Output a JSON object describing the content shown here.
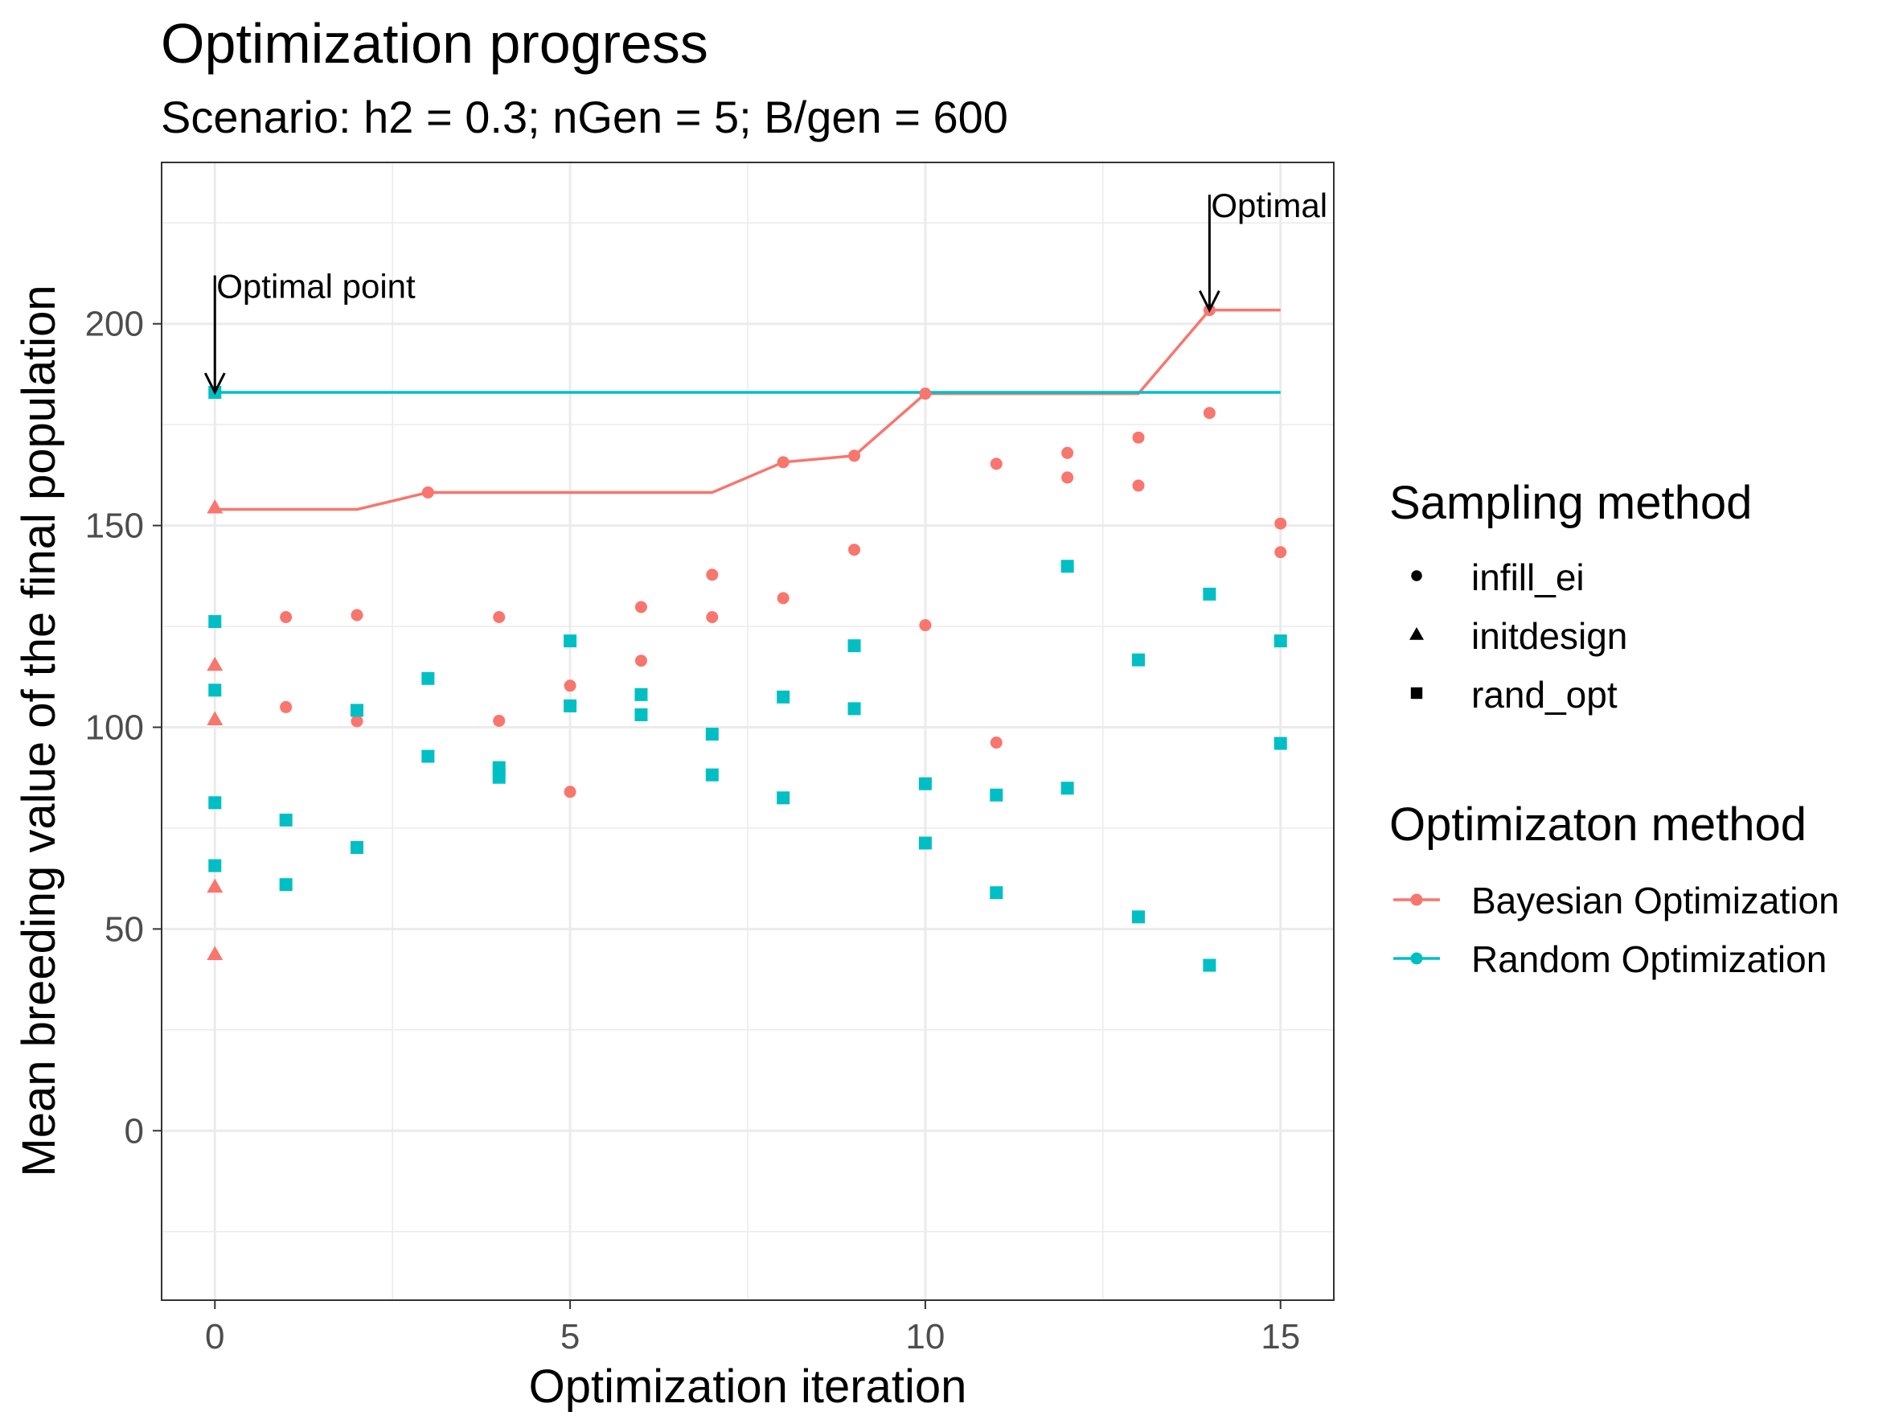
{
  "chart_data": {
    "type": "scatter",
    "title": "Optimization progress",
    "subtitle": "Scenario: h2 = 0.3; nGen = 5; B/gen = 600",
    "xlabel": "Optimization iteration",
    "ylabel": "Mean breeding value of the final population",
    "xlim": [
      -0.75,
      15.75
    ],
    "ylim": [
      -42,
      240
    ],
    "x_ticks": [
      0,
      5,
      10,
      15
    ],
    "y_ticks": [
      0,
      50,
      100,
      150,
      200
    ],
    "grid": true,
    "legend_position": "right",
    "colors": {
      "bayesian": "#F8766D",
      "random": "#00BFC4",
      "annotation": "#000000",
      "grid": "#EBEBEB"
    },
    "legends": {
      "shape": {
        "title": "Sampling method",
        "items": [
          {
            "label": "infill_ei",
            "shape": "circle"
          },
          {
            "label": "initdesign",
            "shape": "triangle"
          },
          {
            "label": "rand_opt",
            "shape": "square"
          }
        ]
      },
      "color": {
        "title": "Optimizaton method",
        "items": [
          {
            "label": "Bayesian Optimization",
            "color": "#F8766D"
          },
          {
            "label": "Random Optimization",
            "color": "#00BFC4"
          }
        ]
      }
    },
    "lines": [
      {
        "method": "Bayesian Optimization",
        "color": "#F8766D",
        "x": [
          0,
          1,
          2,
          3,
          4,
          5,
          6,
          7,
          8,
          9,
          10,
          11,
          12,
          13,
          14,
          15
        ],
        "y": [
          154,
          154,
          154,
          158.2,
          158.2,
          158.2,
          158.2,
          158.2,
          165.7,
          167.3,
          182.7,
          182.7,
          182.7,
          182.7,
          203.4,
          203.4
        ]
      },
      {
        "method": "Random Optimization",
        "color": "#00BFC4",
        "x": [
          0,
          15
        ],
        "y": [
          183,
          183
        ]
      }
    ],
    "points": {
      "initdesign": {
        "method": "Bayesian Optimization",
        "color": "#F8766D",
        "shape": "triangle",
        "x": [
          0,
          0,
          0,
          0,
          0
        ],
        "y": [
          154.5,
          115.5,
          102,
          60.5,
          43.8
        ]
      },
      "infill_ei": {
        "method": "Bayesian Optimization",
        "color": "#F8766D",
        "shape": "circle",
        "x": [
          1,
          1,
          2,
          2,
          3,
          4,
          4,
          5,
          5,
          6,
          6,
          7,
          7,
          8,
          8,
          9,
          9,
          10,
          10,
          11,
          11,
          12,
          12,
          13,
          13,
          14,
          14,
          15,
          15
        ],
        "y": [
          127.3,
          105,
          127.8,
          101.5,
          158.2,
          127.3,
          101.6,
          110.3,
          84,
          129.8,
          116.5,
          137.8,
          127.3,
          165.7,
          132,
          144,
          167.3,
          125.3,
          182.7,
          96.2,
          165.3,
          161.9,
          168,
          159.9,
          171.8,
          177.9,
          203.4,
          150.5,
          143.4
        ]
      },
      "rand_opt": {
        "method": "Random Optimization",
        "color": "#00BFC4",
        "shape": "square",
        "x": [
          0,
          0,
          0,
          0,
          0,
          1,
          1,
          2,
          2,
          3,
          3,
          4,
          4,
          5,
          5,
          6,
          6,
          7,
          7,
          8,
          8,
          9,
          9,
          10,
          10,
          11,
          11,
          12,
          12,
          13,
          13,
          14,
          14,
          15,
          15
        ],
        "y": [
          183,
          126.2,
          109.2,
          81.3,
          65.7,
          77,
          61,
          104.2,
          70.2,
          112.1,
          92.8,
          90,
          87.6,
          121.4,
          105.3,
          108.1,
          103.1,
          98.3,
          88.2,
          107.5,
          82.5,
          120.2,
          104.6,
          86,
          71.3,
          83.2,
          59,
          84.9,
          139.9,
          116.7,
          53,
          133,
          41,
          121.4,
          96
        ]
      }
    },
    "annotations": [
      {
        "text": "Optimal point",
        "x": 0,
        "y_text": 212,
        "y_arrow": 183
      },
      {
        "text": "Optimal point",
        "x": 14,
        "y_text": 232,
        "y_arrow": 203.4
      }
    ]
  }
}
